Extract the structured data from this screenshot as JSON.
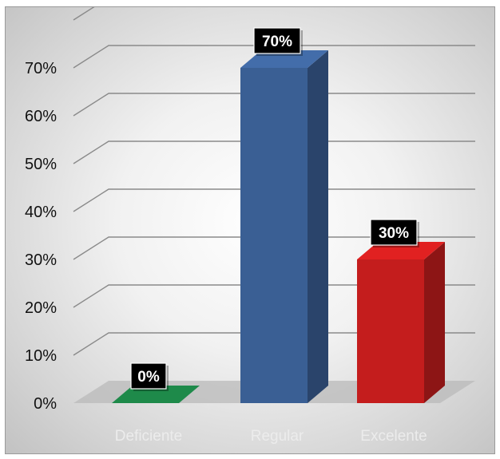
{
  "chart_data": {
    "type": "bar",
    "three_d": true,
    "categories": [
      "Deficiente",
      "Regular",
      "Excelente"
    ],
    "values": [
      0,
      70,
      30
    ],
    "data_labels": [
      "0%",
      "70%",
      "30%"
    ],
    "y_ticks": [
      "0%",
      "10%",
      "20%",
      "30%",
      "40%",
      "50%",
      "60%",
      "70%"
    ],
    "ylim": [
      0,
      70
    ],
    "grid": true,
    "legend": "none",
    "colors": {
      "bars": [
        "#1e8a4a",
        "#3a5f94",
        "#c41d1d"
      ],
      "grid": "#8a8a8a",
      "label_box": "#000000",
      "category_text": "#ececec"
    }
  }
}
